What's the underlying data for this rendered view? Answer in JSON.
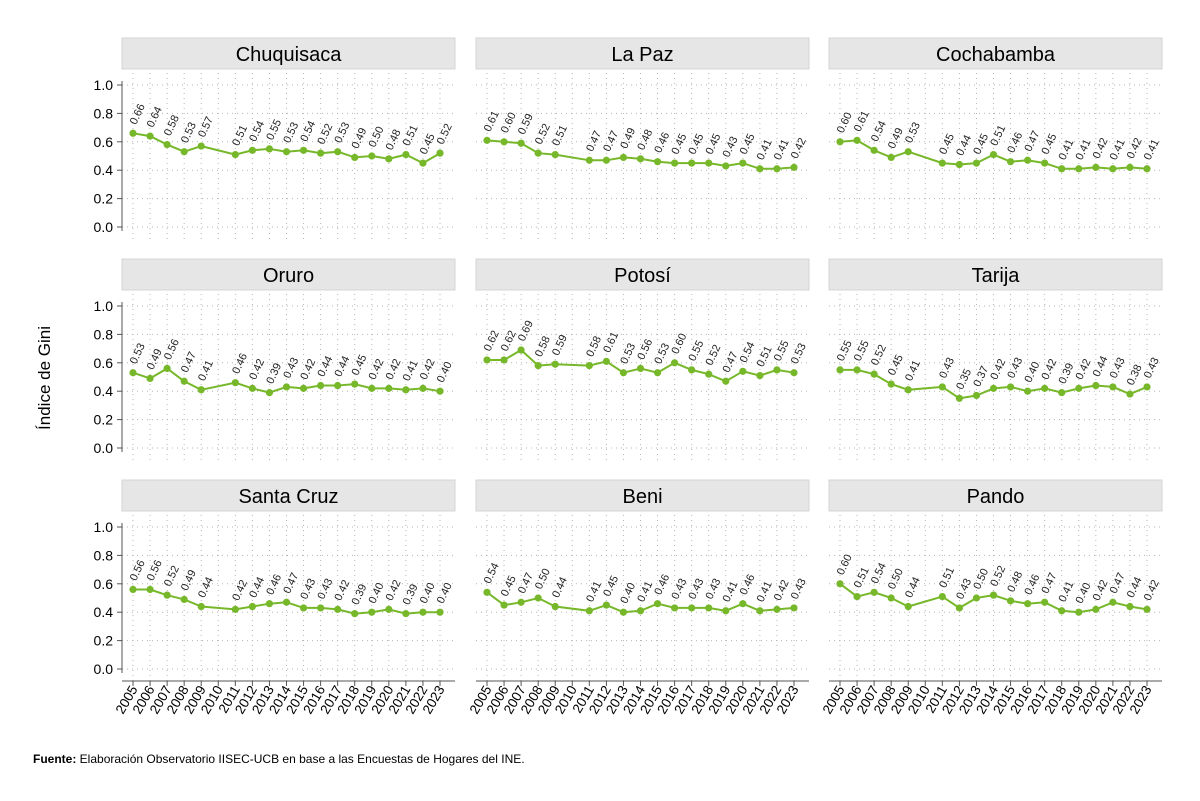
{
  "chart_data": {
    "type": "line",
    "ylabel": "Índice de Gini",
    "ylim": [
      0.0,
      1.0
    ],
    "yticks": [
      "0.0",
      "0.2",
      "0.4",
      "0.6",
      "0.8",
      "1.0"
    ],
    "years": [
      "2005",
      "2006",
      "2007",
      "2008",
      "2009",
      "2010",
      "2011",
      "2012",
      "2013",
      "2014",
      "2015",
      "2016",
      "2017",
      "2018",
      "2019",
      "2020",
      "2021",
      "2022",
      "2023"
    ],
    "color": "#77b82a",
    "panel_header_color": "#e6e6e6",
    "panels": [
      {
        "name": "Chuquisaca",
        "x": [
          2005,
          2006,
          2007,
          2008,
          2009,
          2011,
          2012,
          2013,
          2014,
          2015,
          2016,
          2017,
          2018,
          2019,
          2020,
          2021,
          2022,
          2023
        ],
        "values": [
          0.66,
          0.64,
          0.58,
          0.53,
          0.57,
          0.51,
          0.54,
          0.55,
          0.53,
          0.54,
          0.52,
          0.53,
          0.49,
          0.5,
          0.48,
          0.51,
          0.45,
          0.52
        ]
      },
      {
        "name": "La Paz",
        "x": [
          2005,
          2006,
          2007,
          2008,
          2009,
          2011,
          2012,
          2013,
          2014,
          2015,
          2016,
          2017,
          2018,
          2019,
          2020,
          2021,
          2022,
          2023
        ],
        "values": [
          0.61,
          0.6,
          0.59,
          0.52,
          0.51,
          0.47,
          0.47,
          0.49,
          0.48,
          0.46,
          0.45,
          0.45,
          0.45,
          0.43,
          0.45,
          0.41,
          0.41,
          0.42
        ]
      },
      {
        "name": "Cochabamba",
        "x": [
          2005,
          2006,
          2007,
          2008,
          2009,
          2011,
          2012,
          2013,
          2014,
          2015,
          2016,
          2017,
          2018,
          2019,
          2020,
          2021,
          2022,
          2023
        ],
        "values": [
          0.6,
          0.61,
          0.54,
          0.49,
          0.53,
          0.45,
          0.44,
          0.45,
          0.51,
          0.46,
          0.47,
          0.45,
          0.41,
          0.41,
          0.42,
          0.41,
          0.42,
          0.41
        ]
      },
      {
        "name": "Oruro",
        "x": [
          2005,
          2006,
          2007,
          2008,
          2009,
          2011,
          2012,
          2013,
          2014,
          2015,
          2016,
          2017,
          2018,
          2019,
          2020,
          2021,
          2022,
          2023
        ],
        "values": [
          0.53,
          0.49,
          0.56,
          0.47,
          0.41,
          0.46,
          0.42,
          0.39,
          0.43,
          0.42,
          0.44,
          0.44,
          0.45,
          0.42,
          0.42,
          0.41,
          0.42,
          0.4
        ]
      },
      {
        "name": "Potosí",
        "x": [
          2005,
          2006,
          2007,
          2008,
          2009,
          2011,
          2012,
          2013,
          2014,
          2015,
          2016,
          2017,
          2018,
          2019,
          2020,
          2021,
          2022,
          2023
        ],
        "values": [
          0.62,
          0.62,
          0.69,
          0.58,
          0.59,
          0.58,
          0.61,
          0.53,
          0.56,
          0.53,
          0.6,
          0.55,
          0.52,
          0.47,
          0.54,
          0.51,
          0.55,
          0.53
        ]
      },
      {
        "name": "Tarija",
        "x": [
          2005,
          2006,
          2007,
          2008,
          2009,
          2011,
          2012,
          2013,
          2014,
          2015,
          2016,
          2017,
          2018,
          2019,
          2020,
          2021,
          2022,
          2023
        ],
        "values": [
          0.55,
          0.55,
          0.52,
          0.45,
          0.41,
          0.43,
          0.35,
          0.37,
          0.42,
          0.43,
          0.4,
          0.42,
          0.39,
          0.42,
          0.44,
          0.43,
          0.38,
          0.43
        ]
      },
      {
        "name": "Santa Cruz",
        "x": [
          2005,
          2006,
          2007,
          2008,
          2009,
          2011,
          2012,
          2013,
          2014,
          2015,
          2016,
          2017,
          2018,
          2019,
          2020,
          2021,
          2022,
          2023
        ],
        "values": [
          0.56,
          0.56,
          0.52,
          0.49,
          0.44,
          0.42,
          0.44,
          0.46,
          0.47,
          0.43,
          0.43,
          0.42,
          0.39,
          0.4,
          0.42,
          0.39,
          0.4,
          0.4
        ]
      },
      {
        "name": "Beni",
        "x": [
          2005,
          2006,
          2007,
          2008,
          2009,
          2011,
          2012,
          2013,
          2014,
          2015,
          2016,
          2017,
          2018,
          2019,
          2020,
          2021,
          2022,
          2023
        ],
        "values": [
          0.54,
          0.45,
          0.47,
          0.5,
          0.44,
          0.41,
          0.45,
          0.4,
          0.41,
          0.46,
          0.43,
          0.43,
          0.43,
          0.41,
          0.46,
          0.41,
          0.42,
          0.43
        ]
      },
      {
        "name": "Pando",
        "x": [
          2005,
          2006,
          2007,
          2008,
          2009,
          2011,
          2012,
          2013,
          2014,
          2015,
          2016,
          2017,
          2018,
          2019,
          2020,
          2021,
          2022,
          2023
        ],
        "values": [
          0.6,
          0.51,
          0.54,
          0.5,
          0.44,
          0.51,
          0.43,
          0.5,
          0.52,
          0.48,
          0.46,
          0.47,
          0.41,
          0.4,
          0.42,
          0.47,
          0.44,
          0.42
        ]
      }
    ]
  },
  "footer": {
    "label": "Fuente:",
    "text": " Elaboración Observatorio IISEC-UCB en base a las Encuestas de Hogares del INE."
  }
}
